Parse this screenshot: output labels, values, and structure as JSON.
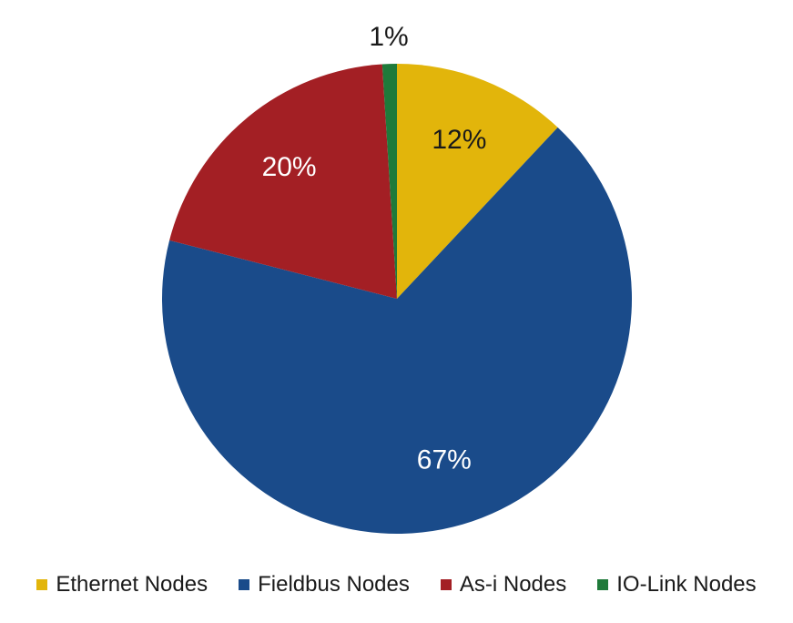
{
  "chart_data": {
    "type": "pie",
    "categories": [
      "Ethernet Nodes",
      "Fieldbus Nodes",
      "As-i Nodes",
      "IO-Link Nodes"
    ],
    "values": [
      12,
      67,
      20,
      1
    ],
    "labels": [
      "12%",
      "67%",
      "20%",
      "1%"
    ],
    "colors": [
      "#E2B50B",
      "#1A4B8A",
      "#A31F24",
      "#1F7A3A"
    ],
    "label_colors": [
      "#1a1a1a",
      "#ffffff",
      "#ffffff",
      "#1a1a1a"
    ],
    "legend": "bottom",
    "title": ""
  }
}
